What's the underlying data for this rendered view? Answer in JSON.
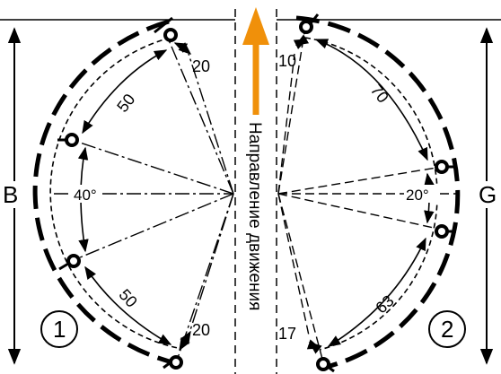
{
  "diagram": {
    "dimension_left": "B",
    "dimension_right": "G",
    "direction_label": "Направление движения",
    "wheel_left": {
      "number": "1",
      "angles": [
        "20",
        "50",
        "40°",
        "50",
        "20"
      ]
    },
    "wheel_right": {
      "number": "2",
      "angles": [
        "10",
        "70",
        "20°",
        "63",
        "17"
      ]
    },
    "colors": {
      "arrow": "#f0900a",
      "lines": "#000000",
      "background": "#ffffff"
    }
  }
}
